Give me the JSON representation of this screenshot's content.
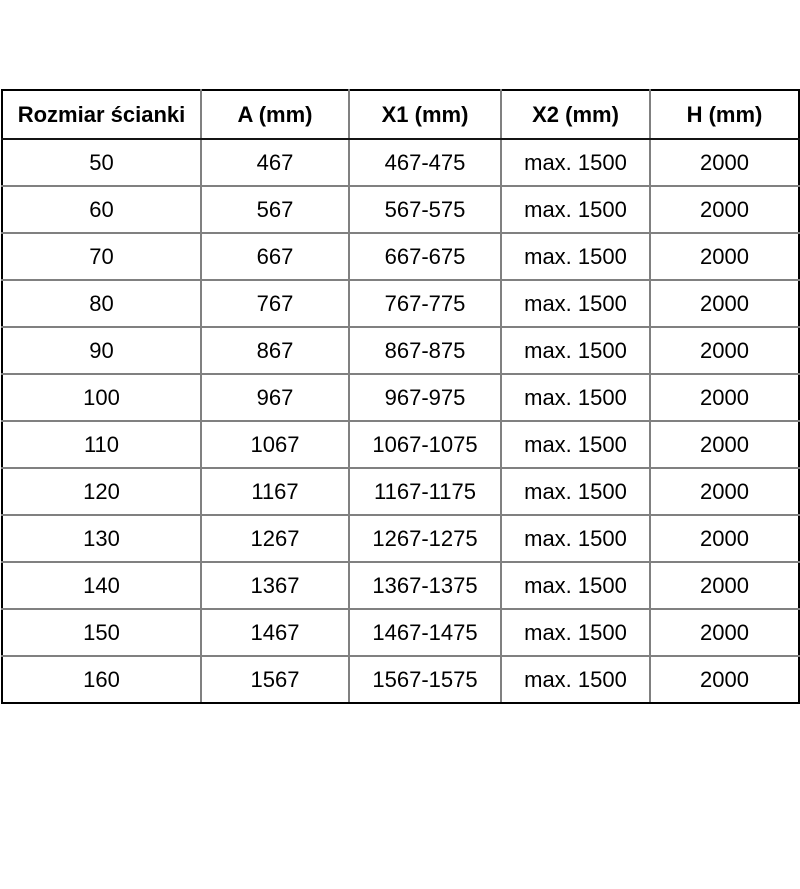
{
  "colors": {
    "background": "#ffffff",
    "text": "#000000",
    "outer_border": "#000000",
    "inner_border": "#808080",
    "header_underline": "#141414"
  },
  "table": {
    "headers": [
      "Rozmiar ścianki",
      "A (mm)",
      "X1 (mm)",
      "X2 (mm)",
      "H (mm)"
    ],
    "rows": [
      [
        "50",
        "467",
        "467-475",
        "max. 1500",
        "2000"
      ],
      [
        "60",
        "567",
        "567-575",
        "max. 1500",
        "2000"
      ],
      [
        "70",
        "667",
        "667-675",
        "max. 1500",
        "2000"
      ],
      [
        "80",
        "767",
        "767-775",
        "max. 1500",
        "2000"
      ],
      [
        "90",
        "867",
        "867-875",
        "max. 1500",
        "2000"
      ],
      [
        "100",
        "967",
        "967-975",
        "max. 1500",
        "2000"
      ],
      [
        "110",
        "1067",
        "1067-1075",
        "max. 1500",
        "2000"
      ],
      [
        "120",
        "1167",
        "1167-1175",
        "max. 1500",
        "2000"
      ],
      [
        "130",
        "1267",
        "1267-1275",
        "max. 1500",
        "2000"
      ],
      [
        "140",
        "1367",
        "1367-1375",
        "max. 1500",
        "2000"
      ],
      [
        "150",
        "1467",
        "1467-1475",
        "max. 1500",
        "2000"
      ],
      [
        "160",
        "1567",
        "1567-1575",
        "max. 1500",
        "2000"
      ]
    ]
  }
}
